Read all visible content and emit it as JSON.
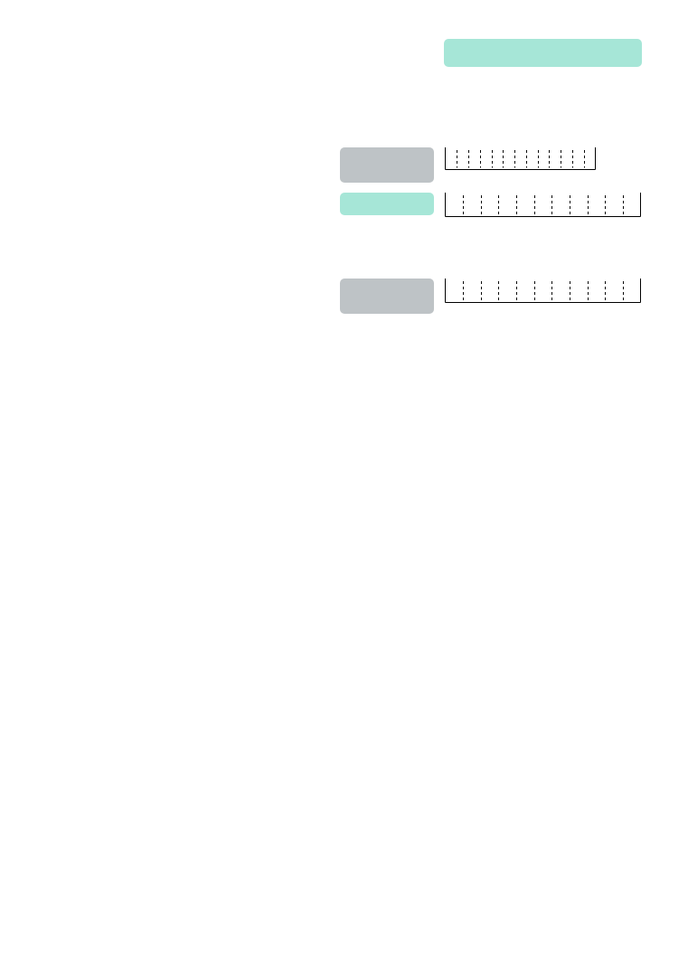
{
  "form": {
    "header_band": {
      "color": "#a6e6d7"
    },
    "rows": [
      {
        "label_color": "#bec3c6",
        "comb_cells": 13
      },
      {
        "label_color": "#a6e6d7",
        "comb_cells": 11
      },
      {
        "label_color": "#bec3c6",
        "comb_cells": 11
      }
    ]
  },
  "colors": {
    "accent_mint": "#a6e6d7",
    "neutral_gray": "#bec3c6",
    "stroke": "#000000"
  }
}
